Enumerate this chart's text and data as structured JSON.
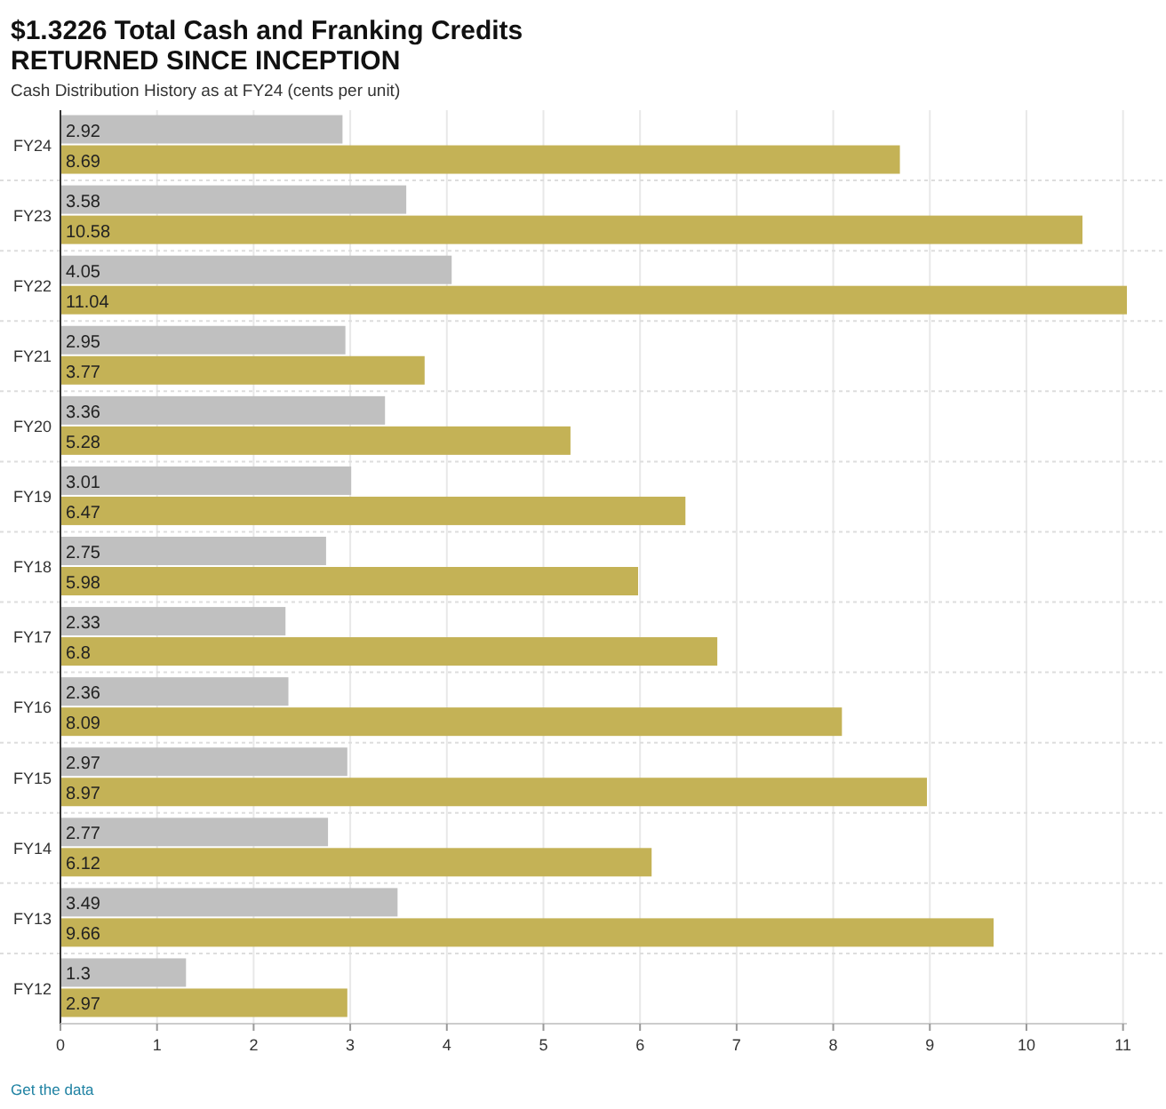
{
  "chart_data": {
    "type": "bar",
    "orientation": "horizontal",
    "title": "$1.3226 Total Cash and Franking Credits\nRETURNED SINCE INCEPTION",
    "subtitle": "Cash Distribution History as at FY24 (cents per unit)",
    "categories": [
      "FY24",
      "FY23",
      "FY22",
      "FY21",
      "FY20",
      "FY19",
      "FY18",
      "FY17",
      "FY16",
      "FY15",
      "FY14",
      "FY13",
      "FY12"
    ],
    "series": [
      {
        "color": "#c0c0c0",
        "values": [
          2.92,
          3.58,
          4.05,
          2.95,
          3.36,
          3.01,
          2.75,
          2.33,
          2.36,
          2.97,
          2.77,
          3.49,
          1.3
        ]
      },
      {
        "color": "#c4b256",
        "values": [
          8.69,
          10.58,
          11.04,
          3.77,
          5.28,
          6.47,
          5.98,
          6.8,
          8.09,
          8.97,
          6.12,
          9.66,
          2.97
        ]
      }
    ],
    "xlim": [
      0,
      11.04
    ],
    "xticks": [
      0,
      1,
      2,
      3,
      4,
      5,
      6,
      7,
      8,
      9,
      10,
      11
    ],
    "grid": "x",
    "data_labels": true,
    "annotations": [
      "Get the data"
    ]
  }
}
